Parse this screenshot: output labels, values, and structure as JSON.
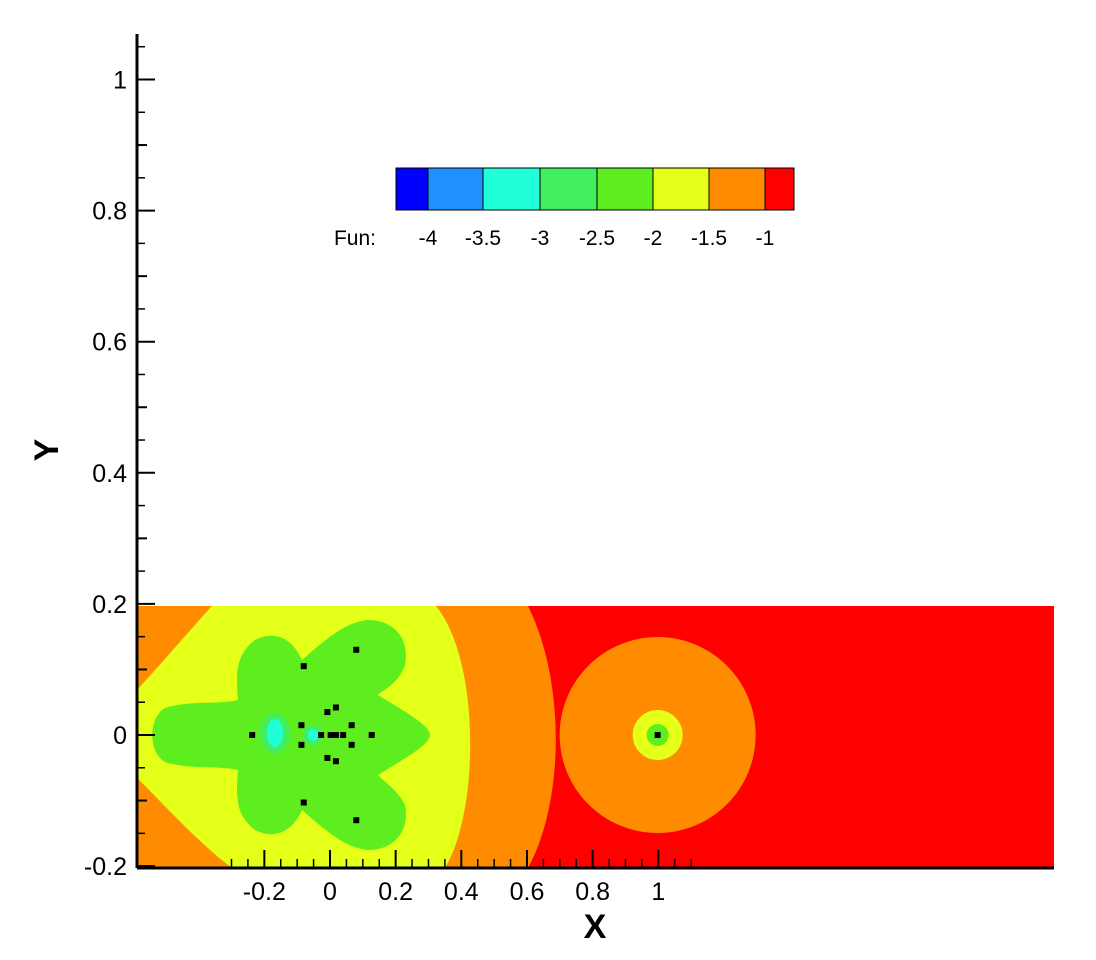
{
  "chart_data": {
    "type": "heatmap",
    "subtype": "filled-contour",
    "xlabel": "X",
    "ylabel": "Y",
    "xlim": [
      -0.3,
      1.1
    ],
    "ylim": [
      -0.2,
      1.07
    ],
    "x_ticks": [
      -0.2,
      0,
      0.2,
      0.4,
      0.6,
      0.8,
      1
    ],
    "x_tick_labels": [
      "-0.2",
      "0",
      "0.2",
      "0.4",
      "0.6",
      "0.8",
      "1"
    ],
    "y_ticks": [
      -0.2,
      0,
      0.2,
      0.4,
      0.6,
      0.8,
      1
    ],
    "y_tick_labels": [
      "-0.2",
      "0",
      "0.2",
      "0.4",
      "0.6",
      "0.8",
      "1"
    ],
    "field_region": {
      "x": [
        -0.3,
        1.1
      ],
      "y": [
        -0.2,
        0.2
      ]
    },
    "legend": {
      "title": "Fun:",
      "placement": "top-center",
      "levels": [
        "-4",
        "-3.5",
        "-3",
        "-2.5",
        "-2",
        "-1.5",
        "-1"
      ],
      "colors": [
        "#0000ff",
        "#1e90ff",
        "#20ffd8",
        "#40ee60",
        "#5eee20",
        "#e4ff18",
        "#ff8c00",
        "#ff0000"
      ]
    },
    "contour_bands": [
      {
        "range": "> -1",
        "color": "#ff0000"
      },
      {
        "range": "-1.5 to -1",
        "color": "#ff8c00"
      },
      {
        "range": "-2 to -1.5",
        "color": "#e4ff18"
      },
      {
        "range": "-2.5 to -2",
        "color": "#5eee20"
      },
      {
        "range": "-3 to -2.5",
        "color": "#40ee60"
      },
      {
        "range": "-3.5 to -3",
        "color": "#20ffd8"
      }
    ],
    "points": [
      {
        "x": -0.237,
        "y": 0.0,
        "depth": 1
      },
      {
        "x": -0.08,
        "y": 0.105,
        "depth": 1
      },
      {
        "x": -0.08,
        "y": -0.103,
        "depth": 1
      },
      {
        "x": -0.087,
        "y": 0.015,
        "depth": 2
      },
      {
        "x": -0.087,
        "y": -0.015,
        "depth": 2
      },
      {
        "x": -0.027,
        "y": 0.0,
        "depth": 2
      },
      {
        "x": -0.008,
        "y": 0.035,
        "depth": 1
      },
      {
        "x": -0.008,
        "y": -0.035,
        "depth": 1
      },
      {
        "x": 0.002,
        "y": 0.0,
        "depth": 1
      },
      {
        "x": 0.018,
        "y": 0.0,
        "depth": 1
      },
      {
        "x": 0.018,
        "y": 0.042,
        "depth": 1
      },
      {
        "x": 0.018,
        "y": -0.04,
        "depth": 1
      },
      {
        "x": 0.04,
        "y": 0.0,
        "depth": 1
      },
      {
        "x": 0.066,
        "y": 0.015,
        "depth": 1
      },
      {
        "x": 0.066,
        "y": -0.015,
        "depth": 1
      },
      {
        "x": 0.08,
        "y": 0.13,
        "depth": 1
      },
      {
        "x": 0.08,
        "y": -0.13,
        "depth": 1
      },
      {
        "x": 0.127,
        "y": 0.0,
        "depth": 1
      },
      {
        "x": 0.998,
        "y": 0.0,
        "depth": 1
      }
    ]
  }
}
